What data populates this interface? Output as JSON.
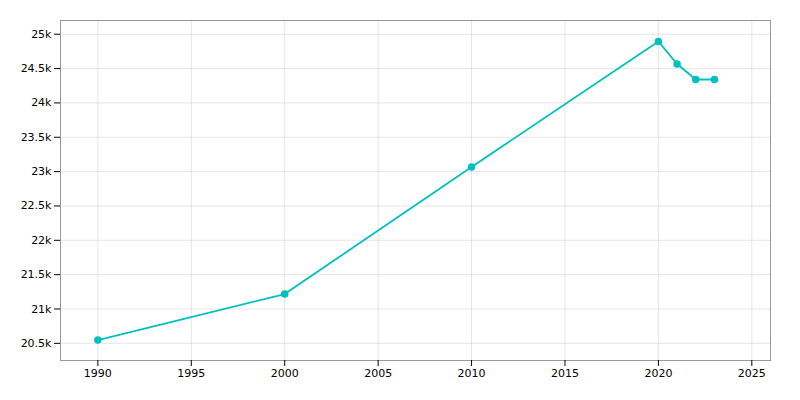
{
  "chart_data": {
    "type": "line",
    "x": [
      1990,
      2000,
      2010,
      2020,
      2021,
      2022,
      2023
    ],
    "values": [
      20548,
      21218,
      23068,
      24895,
      24567,
      24341,
      24341
    ],
    "color": "#00BFBF",
    "marker": "circle",
    "xlim": [
      1988,
      2026
    ],
    "ylim": [
      20250,
      25200
    ],
    "xticks": [
      1990,
      1995,
      2000,
      2005,
      2010,
      2015,
      2020,
      2025
    ],
    "yticks": [
      {
        "value": 20500,
        "label": "20.5k"
      },
      {
        "value": 21000,
        "label": "21k"
      },
      {
        "value": 21500,
        "label": "21.5k"
      },
      {
        "value": 22000,
        "label": "22k"
      },
      {
        "value": 22500,
        "label": "22.5k"
      },
      {
        "value": 23000,
        "label": "23k"
      },
      {
        "value": 23500,
        "label": "23.5k"
      },
      {
        "value": 24000,
        "label": "24k"
      },
      {
        "value": 24500,
        "label": "24.5k"
      },
      {
        "value": 25000,
        "label": "25k"
      }
    ],
    "grid": true
  }
}
